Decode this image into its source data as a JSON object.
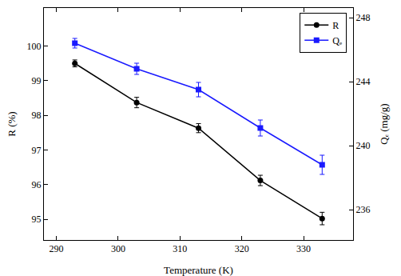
{
  "chart_data": {
    "type": "line",
    "x_label": "Temperature (K)",
    "y_label": "R (%)",
    "y2_label": "Qₑ (mg/g)",
    "x": [
      293,
      303,
      313,
      323,
      333
    ],
    "xlim": [
      288,
      338
    ],
    "xticks": [
      290,
      300,
      310,
      320,
      330
    ],
    "ylim": [
      94.4,
      101.1
    ],
    "yticks": [
      95,
      96,
      97,
      98,
      99,
      100
    ],
    "y2lim": [
      234.1,
      248.6
    ],
    "y2ticks": [
      236,
      240,
      244,
      248
    ],
    "legend": "top-right",
    "grid": false,
    "series": [
      {
        "name": "R",
        "color": "#000000",
        "marker": "circle",
        "line_style": "solid",
        "values": [
          99.5,
          98.37,
          97.63,
          96.12,
          95.02
        ],
        "errors": [
          0.1,
          0.15,
          0.13,
          0.15,
          0.18
        ]
      },
      {
        "name": "Qₑ",
        "color": "#1a1aff",
        "marker": "square",
        "line_style": "solid",
        "axis": "y2",
        "values": [
          246.4,
          244.8,
          243.5,
          241.1,
          238.8
        ],
        "errors": [
          0.3,
          0.35,
          0.45,
          0.5,
          0.6
        ]
      }
    ]
  }
}
